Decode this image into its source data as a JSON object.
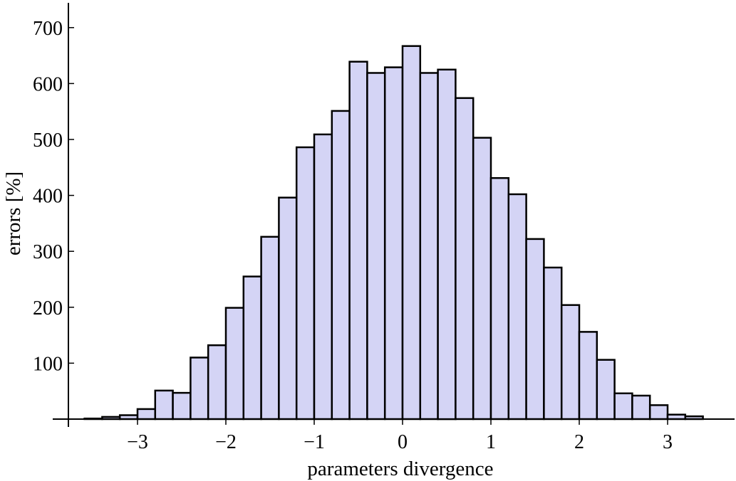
{
  "chart_data": {
    "type": "bar",
    "subtype": "histogram",
    "xlabel": "parameters divergence",
    "ylabel": "errors [%]",
    "xlim": [
      -3.8,
      3.8
    ],
    "ylim": [
      0,
      700
    ],
    "xticks": [
      -3,
      -2,
      -1,
      0,
      1,
      2,
      3
    ],
    "xtick_labels": [
      "−3",
      "−2",
      "−1",
      "0",
      "1",
      "2",
      "3"
    ],
    "yticks": [
      100,
      200,
      300,
      400,
      500,
      600,
      700
    ],
    "ytick_labels": [
      "100",
      "200",
      "300",
      "400",
      "500",
      "600",
      "700"
    ],
    "bin_width": 0.2,
    "bins": [
      {
        "x0": -3.6,
        "x1": -3.4,
        "value": 1
      },
      {
        "x0": -3.4,
        "x1": -3.2,
        "value": 4
      },
      {
        "x0": -3.2,
        "x1": -3.0,
        "value": 7
      },
      {
        "x0": -3.0,
        "x1": -2.8,
        "value": 18
      },
      {
        "x0": -2.8,
        "x1": -2.6,
        "value": 51
      },
      {
        "x0": -2.6,
        "x1": -2.4,
        "value": 47
      },
      {
        "x0": -2.4,
        "x1": -2.2,
        "value": 110
      },
      {
        "x0": -2.2,
        "x1": -2.0,
        "value": 132
      },
      {
        "x0": -2.0,
        "x1": -1.8,
        "value": 199
      },
      {
        "x0": -1.8,
        "x1": -1.6,
        "value": 255
      },
      {
        "x0": -1.6,
        "x1": -1.4,
        "value": 326
      },
      {
        "x0": -1.4,
        "x1": -1.2,
        "value": 396
      },
      {
        "x0": -1.2,
        "x1": -1.0,
        "value": 486
      },
      {
        "x0": -1.0,
        "x1": -0.8,
        "value": 509
      },
      {
        "x0": -0.8,
        "x1": -0.6,
        "value": 551
      },
      {
        "x0": -0.6,
        "x1": -0.4,
        "value": 639
      },
      {
        "x0": -0.4,
        "x1": -0.2,
        "value": 619
      },
      {
        "x0": -0.2,
        "x1": 0.0,
        "value": 629
      },
      {
        "x0": 0.0,
        "x1": 0.2,
        "value": 667
      },
      {
        "x0": 0.2,
        "x1": 0.4,
        "value": 619
      },
      {
        "x0": 0.4,
        "x1": 0.6,
        "value": 625
      },
      {
        "x0": 0.6,
        "x1": 0.8,
        "value": 574
      },
      {
        "x0": 0.8,
        "x1": 1.0,
        "value": 503
      },
      {
        "x0": 1.0,
        "x1": 1.2,
        "value": 431
      },
      {
        "x0": 1.2,
        "x1": 1.4,
        "value": 402
      },
      {
        "x0": 1.4,
        "x1": 1.6,
        "value": 322
      },
      {
        "x0": 1.6,
        "x1": 1.8,
        "value": 271
      },
      {
        "x0": 1.8,
        "x1": 2.0,
        "value": 204
      },
      {
        "x0": 2.0,
        "x1": 2.2,
        "value": 156
      },
      {
        "x0": 2.2,
        "x1": 2.4,
        "value": 106
      },
      {
        "x0": 2.4,
        "x1": 2.6,
        "value": 46
      },
      {
        "x0": 2.6,
        "x1": 2.8,
        "value": 42
      },
      {
        "x0": 2.8,
        "x1": 3.0,
        "value": 25
      },
      {
        "x0": 3.0,
        "x1": 3.2,
        "value": 8
      },
      {
        "x0": 3.2,
        "x1": 3.4,
        "value": 5
      }
    ],
    "grid": false,
    "legend": "none",
    "bar_fill": "#d4d4f5",
    "bar_stroke": "#000000"
  }
}
